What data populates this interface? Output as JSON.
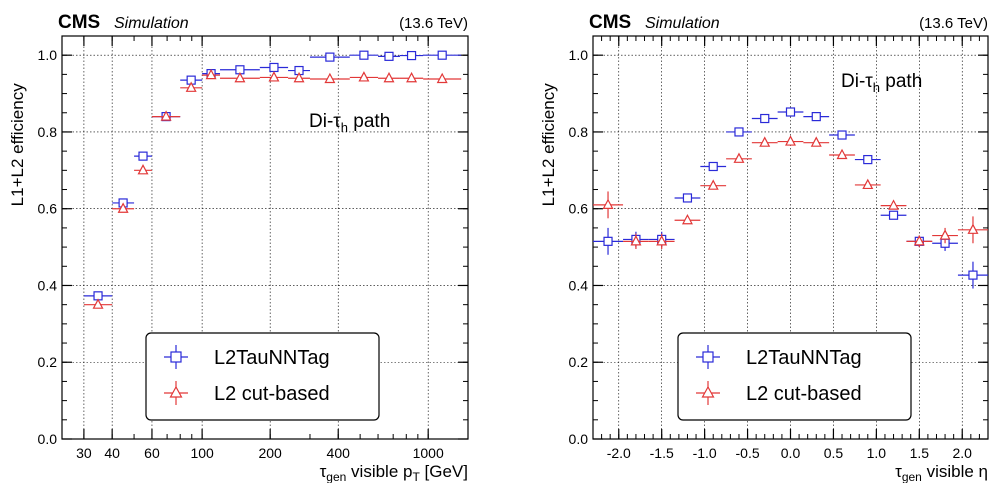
{
  "colors": {
    "nn": "#2a2ad8",
    "cut": "#e23838"
  },
  "chart_data": [
    {
      "type": "scatter",
      "cms_label": "CMS",
      "sim_label": "Simulation",
      "energy_label": "(13.6 TeV)",
      "annotation": {
        "main": "Di-τ",
        "sub": "h",
        "tail": " path"
      },
      "ylabel": "L1+L2 efficiency",
      "xlabel": {
        "main": "τ",
        "sub": "gen",
        "mid": " visible p",
        "sub2": "T",
        "tail": " [GeV]"
      },
      "xscale": "log",
      "xlim": [
        24,
        1500
      ],
      "ylim": [
        0,
        1.05
      ],
      "xticks": [
        30,
        40,
        60,
        100,
        200,
        400,
        1000
      ],
      "xtick_labels": [
        "30",
        "40",
        "60",
        "100",
        "200",
        "400",
        "1000"
      ],
      "yticks": [
        0,
        0.2,
        0.4,
        0.6,
        0.8,
        1.0
      ],
      "ytick_labels": [
        "0.0",
        "0.2",
        "0.4",
        "0.6",
        "0.8",
        "1.0"
      ],
      "grid": true,
      "legend_position": "bottom-center",
      "series": [
        {
          "name": "L2TauNNTag",
          "marker": "square",
          "points": [
            {
              "xlo": 30,
              "xhi": 40,
              "y": 0.373,
              "yerr": 0.008
            },
            {
              "xlo": 40,
              "xhi": 50,
              "y": 0.615,
              "yerr": 0.008
            },
            {
              "xlo": 50,
              "xhi": 60,
              "y": 0.737,
              "yerr": 0.008
            },
            {
              "xlo": 60,
              "xhi": 80,
              "y": 0.84,
              "yerr": 0.006
            },
            {
              "xlo": 80,
              "xhi": 100,
              "y": 0.935,
              "yerr": 0.006
            },
            {
              "xlo": 100,
              "xhi": 120,
              "y": 0.952,
              "yerr": 0.005
            },
            {
              "xlo": 120,
              "xhi": 180,
              "y": 0.962,
              "yerr": 0.004
            },
            {
              "xlo": 180,
              "xhi": 240,
              "y": 0.968,
              "yerr": 0.004
            },
            {
              "xlo": 240,
              "xhi": 300,
              "y": 0.96,
              "yerr": 0.004
            },
            {
              "xlo": 300,
              "xhi": 450,
              "y": 0.995,
              "yerr": 0.003
            },
            {
              "xlo": 450,
              "xhi": 600,
              "y": 1.0,
              "yerr": 0.003
            },
            {
              "xlo": 600,
              "xhi": 750,
              "y": 0.997,
              "yerr": 0.003
            },
            {
              "xlo": 750,
              "xhi": 950,
              "y": 0.999,
              "yerr": 0.003
            },
            {
              "xlo": 950,
              "xhi": 1400,
              "y": 1.0,
              "yerr": 0.003
            }
          ]
        },
        {
          "name": "L2 cut-based",
          "marker": "triangle",
          "points": [
            {
              "xlo": 30,
              "xhi": 40,
              "y": 0.35,
              "yerr": 0.008
            },
            {
              "xlo": 40,
              "xhi": 50,
              "y": 0.6,
              "yerr": 0.008
            },
            {
              "xlo": 50,
              "xhi": 60,
              "y": 0.7,
              "yerr": 0.008
            },
            {
              "xlo": 60,
              "xhi": 80,
              "y": 0.84,
              "yerr": 0.006
            },
            {
              "xlo": 80,
              "xhi": 100,
              "y": 0.915,
              "yerr": 0.006
            },
            {
              "xlo": 100,
              "xhi": 120,
              "y": 0.948,
              "yerr": 0.005
            },
            {
              "xlo": 120,
              "xhi": 180,
              "y": 0.94,
              "yerr": 0.004
            },
            {
              "xlo": 180,
              "xhi": 240,
              "y": 0.942,
              "yerr": 0.004
            },
            {
              "xlo": 240,
              "xhi": 300,
              "y": 0.94,
              "yerr": 0.004
            },
            {
              "xlo": 300,
              "xhi": 450,
              "y": 0.938,
              "yerr": 0.003
            },
            {
              "xlo": 450,
              "xhi": 600,
              "y": 0.942,
              "yerr": 0.003
            },
            {
              "xlo": 600,
              "xhi": 750,
              "y": 0.94,
              "yerr": 0.003
            },
            {
              "xlo": 750,
              "xhi": 950,
              "y": 0.94,
              "yerr": 0.003
            },
            {
              "xlo": 950,
              "xhi": 1400,
              "y": 0.938,
              "yerr": 0.003
            }
          ]
        }
      ]
    },
    {
      "type": "scatter",
      "cms_label": "CMS",
      "sim_label": "Simulation",
      "energy_label": "(13.6 TeV)",
      "annotation": {
        "main": "Di-τ",
        "sub": "h",
        "tail": " path"
      },
      "ylabel": "L1+L2 efficiency",
      "xlabel": {
        "main": "τ",
        "sub": "gen",
        "mid": " visible η",
        "sub2": "",
        "tail": ""
      },
      "xscale": "linear",
      "xlim": [
        -2.3,
        2.3
      ],
      "ylim": [
        0,
        1.05
      ],
      "xticks": [
        -2.0,
        -1.5,
        -1.0,
        -0.5,
        0.0,
        0.5,
        1.0,
        1.5,
        2.0
      ],
      "xtick_labels": [
        "-2.0",
        "-1.5",
        "-1.0",
        "-0.5",
        "0.0",
        "0.5",
        "1.0",
        "1.5",
        "2.0"
      ],
      "yticks": [
        0,
        0.2,
        0.4,
        0.6,
        0.8,
        1.0
      ],
      "ytick_labels": [
        "0.0",
        "0.2",
        "0.4",
        "0.6",
        "0.8",
        "1.0"
      ],
      "grid": true,
      "legend_position": "bottom-center",
      "series": [
        {
          "name": "L2TauNNTag",
          "marker": "square",
          "points": [
            {
              "xlo": -2.3,
              "xhi": -1.95,
              "y": 0.515,
              "yerr": 0.035
            },
            {
              "xlo": -1.95,
              "xhi": -1.65,
              "y": 0.52,
              "yerr": 0.02
            },
            {
              "xlo": -1.65,
              "xhi": -1.35,
              "y": 0.52,
              "yerr": 0.02
            },
            {
              "xlo": -1.35,
              "xhi": -1.05,
              "y": 0.628,
              "yerr": 0.01
            },
            {
              "xlo": -1.05,
              "xhi": -0.75,
              "y": 0.71,
              "yerr": 0.01
            },
            {
              "xlo": -0.75,
              "xhi": -0.45,
              "y": 0.8,
              "yerr": 0.008
            },
            {
              "xlo": -0.45,
              "xhi": -0.15,
              "y": 0.835,
              "yerr": 0.008
            },
            {
              "xlo": -0.15,
              "xhi": 0.15,
              "y": 0.852,
              "yerr": 0.008
            },
            {
              "xlo": 0.15,
              "xhi": 0.45,
              "y": 0.84,
              "yerr": 0.008
            },
            {
              "xlo": 0.45,
              "xhi": 0.75,
              "y": 0.792,
              "yerr": 0.008
            },
            {
              "xlo": 0.75,
              "xhi": 1.05,
              "y": 0.728,
              "yerr": 0.01
            },
            {
              "xlo": 1.05,
              "xhi": 1.35,
              "y": 0.583,
              "yerr": 0.01
            },
            {
              "xlo": 1.35,
              "xhi": 1.65,
              "y": 0.515,
              "yerr": 0.015
            },
            {
              "xlo": 1.65,
              "xhi": 1.95,
              "y": 0.51,
              "yerr": 0.02
            },
            {
              "xlo": 1.95,
              "xhi": 2.3,
              "y": 0.427,
              "yerr": 0.035
            }
          ]
        },
        {
          "name": "L2 cut-based",
          "marker": "triangle",
          "points": [
            {
              "xlo": -2.3,
              "xhi": -1.95,
              "y": 0.61,
              "yerr": 0.035
            },
            {
              "xlo": -1.95,
              "xhi": -1.65,
              "y": 0.515,
              "yerr": 0.02
            },
            {
              "xlo": -1.65,
              "xhi": -1.35,
              "y": 0.515,
              "yerr": 0.02
            },
            {
              "xlo": -1.35,
              "xhi": -1.05,
              "y": 0.57,
              "yerr": 0.01
            },
            {
              "xlo": -1.05,
              "xhi": -0.75,
              "y": 0.66,
              "yerr": 0.01
            },
            {
              "xlo": -0.75,
              "xhi": -0.45,
              "y": 0.73,
              "yerr": 0.008
            },
            {
              "xlo": -0.45,
              "xhi": -0.15,
              "y": 0.772,
              "yerr": 0.008
            },
            {
              "xlo": -0.15,
              "xhi": 0.15,
              "y": 0.775,
              "yerr": 0.008
            },
            {
              "xlo": 0.15,
              "xhi": 0.45,
              "y": 0.772,
              "yerr": 0.008
            },
            {
              "xlo": 0.45,
              "xhi": 0.75,
              "y": 0.74,
              "yerr": 0.008
            },
            {
              "xlo": 0.75,
              "xhi": 1.05,
              "y": 0.662,
              "yerr": 0.01
            },
            {
              "xlo": 1.05,
              "xhi": 1.35,
              "y": 0.608,
              "yerr": 0.01
            },
            {
              "xlo": 1.35,
              "xhi": 1.65,
              "y": 0.515,
              "yerr": 0.015
            },
            {
              "xlo": 1.65,
              "xhi": 1.95,
              "y": 0.53,
              "yerr": 0.02
            },
            {
              "xlo": 1.95,
              "xhi": 2.3,
              "y": 0.545,
              "yerr": 0.035
            }
          ]
        }
      ]
    }
  ]
}
